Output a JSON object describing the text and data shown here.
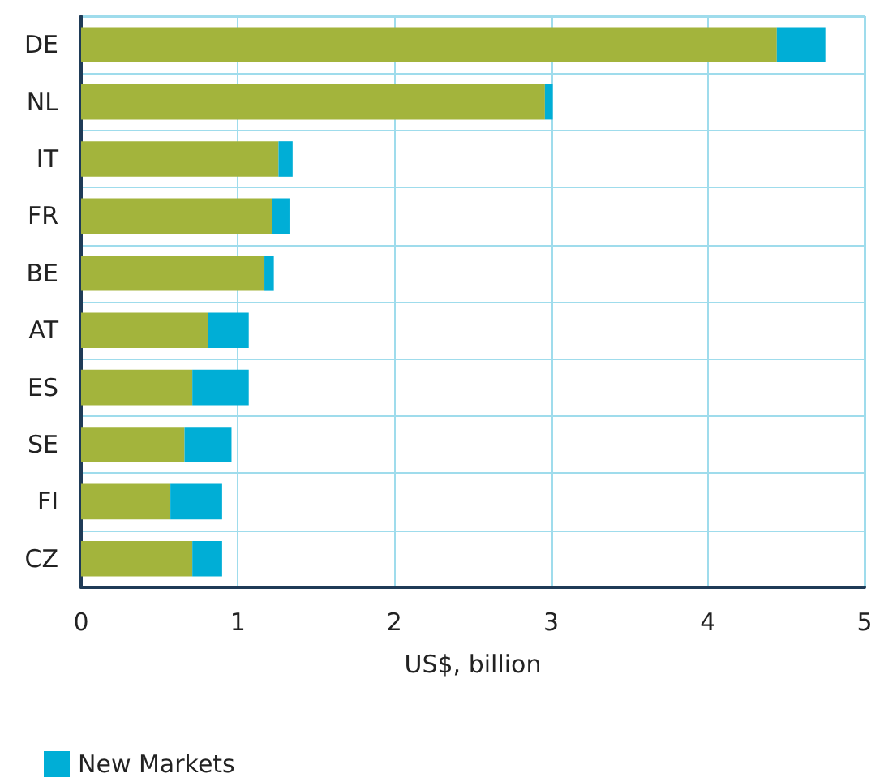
{
  "chart_data": {
    "type": "bar",
    "orientation": "horizontal",
    "stacked": true,
    "xlabel": "US$, billion",
    "categories": [
      "DE",
      "NL",
      "IT",
      "FR",
      "BE",
      "AT",
      "ES",
      "SE",
      "FI",
      "CZ"
    ],
    "series": [
      {
        "color": "#a3b43c",
        "values": [
          4.44,
          2.96,
          1.26,
          1.22,
          1.17,
          0.81,
          0.71,
          0.66,
          0.57,
          0.71
        ]
      },
      {
        "name": "New Markets",
        "color": "#00aed6",
        "values": [
          0.31,
          0.05,
          0.09,
          0.11,
          0.06,
          0.26,
          0.36,
          0.3,
          0.33,
          0.19
        ]
      }
    ],
    "xlim": [
      0,
      5
    ],
    "xticks": [
      0,
      1,
      2,
      3,
      4,
      5
    ],
    "grid": true,
    "legend": "bottom left"
  }
}
